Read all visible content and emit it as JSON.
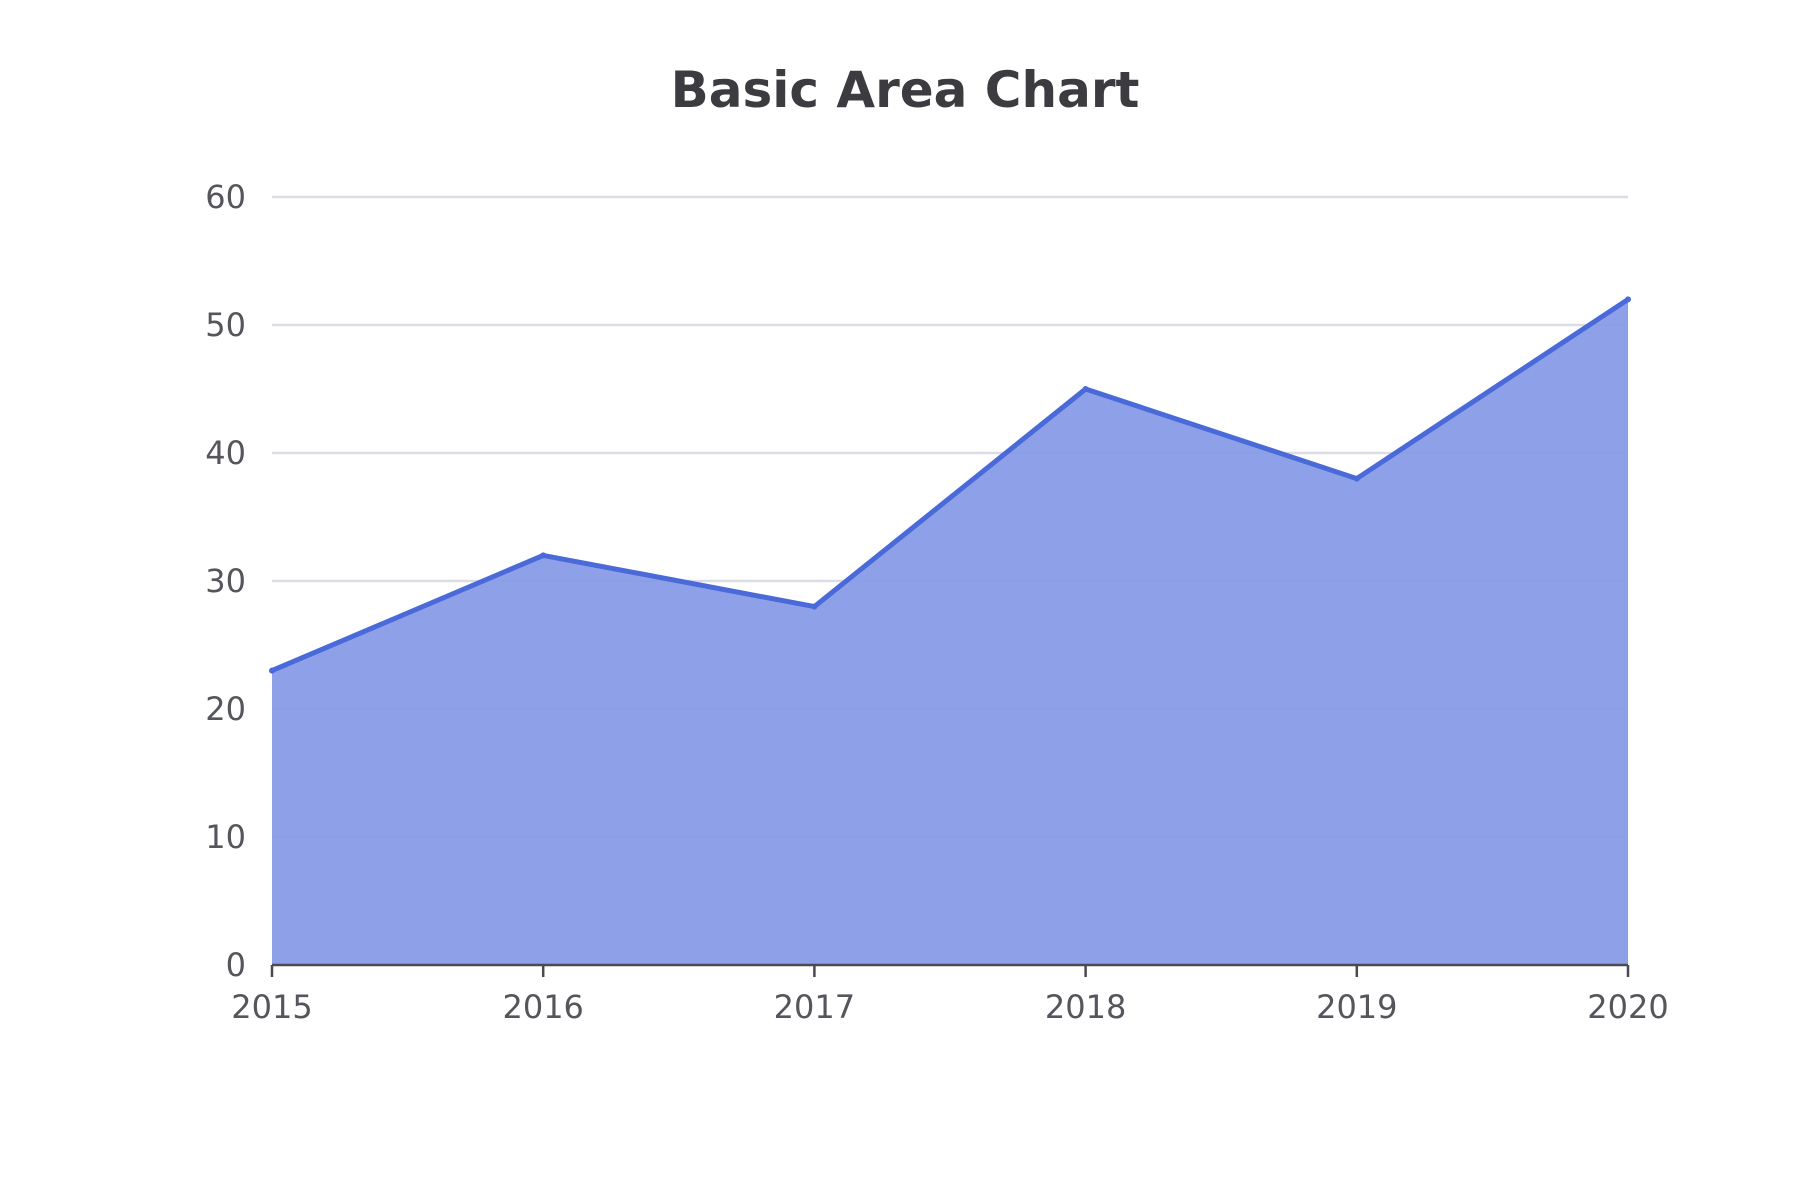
{
  "chart_data": {
    "type": "area",
    "title": "Basic Area Chart",
    "categories": [
      "2015",
      "2016",
      "2017",
      "2018",
      "2019",
      "2020"
    ],
    "series": [
      {
        "values": [
          23,
          32,
          28,
          45,
          38,
          52
        ]
      }
    ],
    "ylim": [
      0,
      60
    ],
    "yticks": [
      0,
      10,
      20,
      30,
      40,
      50,
      60
    ],
    "grid": true,
    "legend": "none",
    "colors": {
      "area_fill": "#8499e6",
      "line": "#4b6ad9",
      "grid": "#dcdce4",
      "axis": "#4a4a55",
      "title": "#3b3b40",
      "tick_label": "#55555c"
    }
  }
}
